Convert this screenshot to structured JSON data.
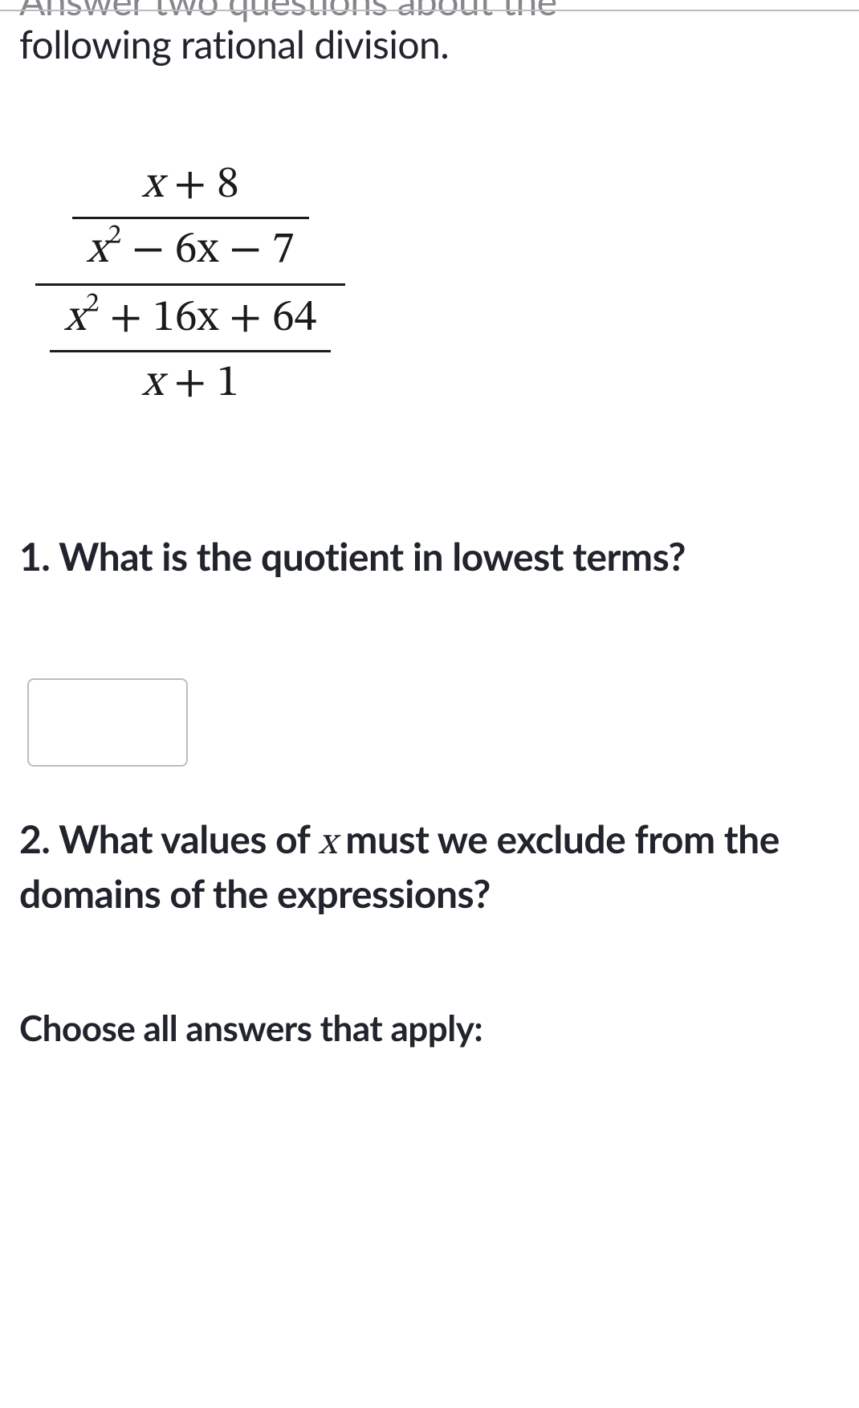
{
  "intro": {
    "line1_faded": "Answer two questions about the",
    "line2": "following rational division."
  },
  "expression": {
    "outer": {
      "top_numerator": "x + 8",
      "top_denominator_a": "x",
      "top_denominator_exp": "2",
      "top_denominator_rest": " − 6x − 7",
      "bottom_numerator_a": "x",
      "bottom_numerator_exp": "2",
      "bottom_numerator_rest": " + 16x + 64",
      "bottom_denominator": "x + 1"
    }
  },
  "q1": {
    "text": "1. What is the quotient in lowest terms?",
    "input_value": ""
  },
  "q2": {
    "prefix": "2. What values of ",
    "var": "x",
    "suffix": " must we exclude from the domains of the expressions?"
  },
  "choose_label": "Choose all answers that apply:"
}
